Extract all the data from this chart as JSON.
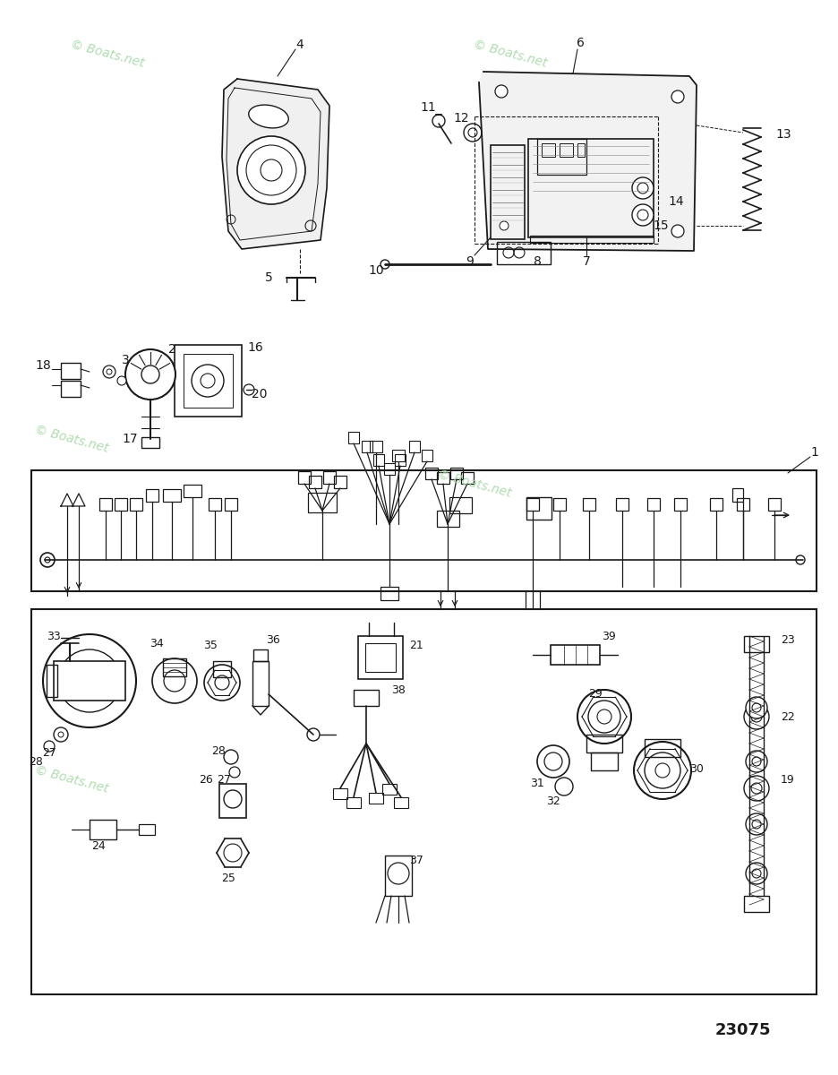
{
  "bg_color": "#ffffff",
  "wm_color": "#a8d8a8",
  "wm_text": "© Boats.net",
  "diagram_number": "23075",
  "lc": "#1a1a1a"
}
